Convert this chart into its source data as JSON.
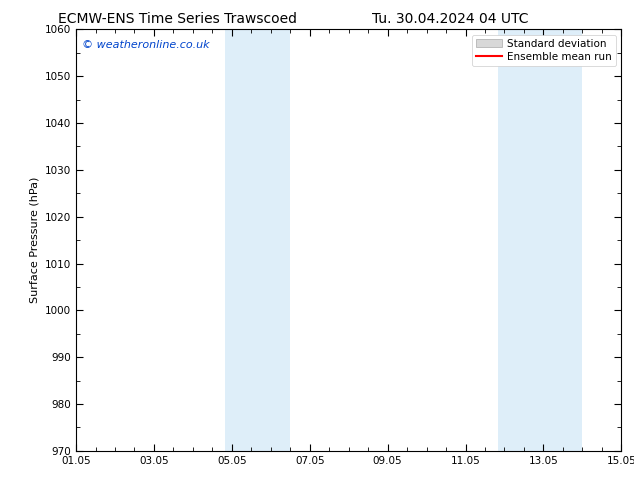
{
  "title_left": "ECMW-ENS Time Series Trawscoed",
  "title_right": "Tu. 30.04.2024 04 UTC",
  "ylabel": "Surface Pressure (hPa)",
  "ylim": [
    970,
    1060
  ],
  "ytick_step": 10,
  "xtick_labels": [
    "01.05",
    "03.05",
    "05.05",
    "07.05",
    "09.05",
    "11.05",
    "13.05",
    "15.05"
  ],
  "xtick_positions": [
    0,
    2,
    4,
    6,
    8,
    10,
    12,
    14
  ],
  "xlim": [
    0,
    14
  ],
  "shaded_bands": [
    {
      "x_start": 3.83,
      "x_end": 5.5,
      "color": "#deeef9"
    },
    {
      "x_start": 10.83,
      "x_end": 13.0,
      "color": "#deeef9"
    }
  ],
  "watermark_text": "© weatheronline.co.uk",
  "watermark_color": "#0044cc",
  "watermark_fontsize": 8,
  "legend_std_color": "#d8d8d8",
  "legend_std_edge": "#aaaaaa",
  "legend_mean_color": "#ff0000",
  "background_color": "#ffffff",
  "plot_bg_color": "#ffffff",
  "title_fontsize": 10,
  "axis_label_fontsize": 8,
  "tick_fontsize": 7.5
}
